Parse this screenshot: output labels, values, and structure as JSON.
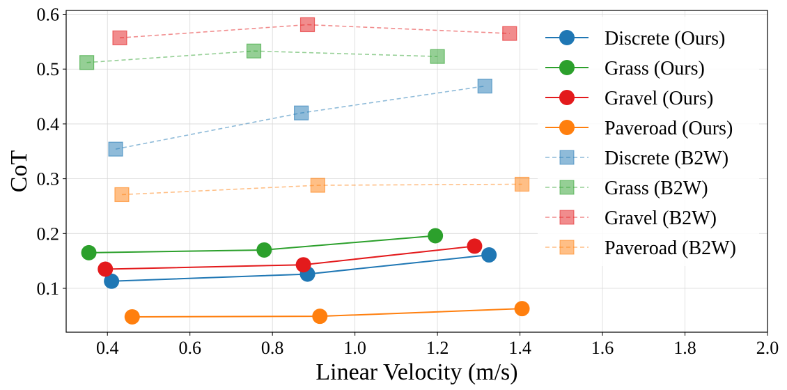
{
  "chart_data": {
    "type": "line",
    "title": "",
    "xlabel": "Linear Velocity (m/s)",
    "ylabel": "CoT",
    "xlim": [
      0.3,
      2.0
    ],
    "ylim": [
      0.02,
      0.607
    ],
    "xticks": [
      0.4,
      0.6,
      0.8,
      1.0,
      1.2,
      1.4,
      1.6,
      1.8,
      2.0
    ],
    "xtick_labels": [
      "0.4",
      "0.6",
      "0.8",
      "1.0",
      "1.2",
      "1.4",
      "1.6",
      "1.8",
      "2.0"
    ],
    "yticks": [
      0.1,
      0.2,
      0.3,
      0.4,
      0.5,
      0.6
    ],
    "ytick_labels": [
      "0.1",
      "0.2",
      "0.3",
      "0.4",
      "0.5",
      "0.6"
    ],
    "grid": true,
    "legend_position": "right",
    "series": [
      {
        "name": "Discrete (Ours)",
        "style": "solid",
        "marker": "circle",
        "color": "#1f77b4",
        "x": [
          0.41,
          0.885,
          1.325
        ],
        "y": [
          0.113,
          0.126,
          0.161
        ]
      },
      {
        "name": "Grass (Ours)",
        "style": "solid",
        "marker": "circle",
        "color": "#2ca02c",
        "x": [
          0.355,
          0.78,
          1.195
        ],
        "y": [
          0.165,
          0.17,
          0.196
        ]
      },
      {
        "name": "Gravel (Ours)",
        "style": "solid",
        "marker": "circle",
        "color": "#e31a1c",
        "x": [
          0.395,
          0.875,
          1.29
        ],
        "y": [
          0.135,
          0.143,
          0.177
        ]
      },
      {
        "name": "Paveroad (Ours)",
        "style": "solid",
        "marker": "circle",
        "color": "#ff7f0e",
        "x": [
          0.46,
          0.915,
          1.405
        ],
        "y": [
          0.048,
          0.049,
          0.063
        ]
      },
      {
        "name": "Discrete (B2W)",
        "style": "dashed",
        "marker": "square",
        "color": "#1f77b4",
        "x": [
          0.42,
          0.87,
          1.315
        ],
        "y": [
          0.354,
          0.42,
          0.469
        ]
      },
      {
        "name": "Grass (B2W)",
        "style": "dashed",
        "marker": "square",
        "color": "#2ca02c",
        "x": [
          0.35,
          0.755,
          1.2
        ],
        "y": [
          0.512,
          0.533,
          0.523
        ]
      },
      {
        "name": "Gravel (B2W)",
        "style": "dashed",
        "marker": "square",
        "color": "#e31a1c",
        "x": [
          0.43,
          0.885,
          1.375
        ],
        "y": [
          0.557,
          0.581,
          0.565
        ]
      },
      {
        "name": "Paveroad (B2W)",
        "style": "dashed",
        "marker": "square",
        "color": "#ff7f0e",
        "x": [
          0.435,
          0.91,
          1.405
        ],
        "y": [
          0.271,
          0.288,
          0.29
        ]
      }
    ]
  }
}
